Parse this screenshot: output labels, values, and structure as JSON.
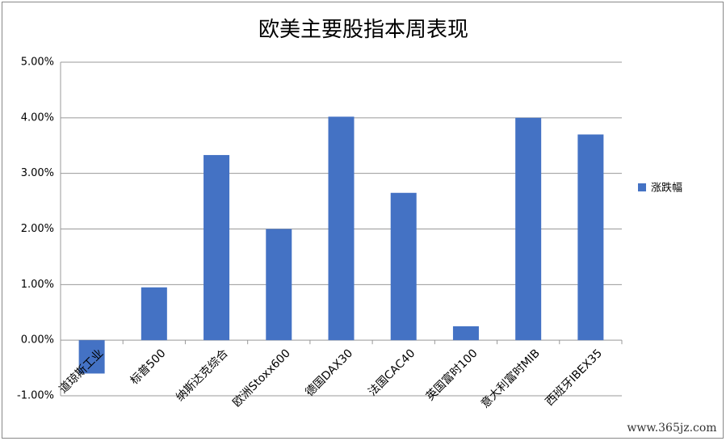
{
  "chart_data": {
    "type": "bar",
    "title": "欧美主要股指本周表现",
    "categories": [
      "道琼斯工业",
      "标普500",
      "纳斯达克综合",
      "欧洲Stoxx600",
      "德国DAX30",
      "法国CAC40",
      "英国富时100",
      "意大利富时MIB",
      "西班牙IBEX35"
    ],
    "series": [
      {
        "name": "涨跌幅",
        "color": "#4472c4",
        "values": [
          -0.6,
          0.95,
          3.33,
          2.0,
          4.02,
          2.65,
          0.25,
          4.0,
          3.7
        ]
      }
    ],
    "ylim": [
      -1,
      5
    ],
    "yticks": [
      {
        "value": -1,
        "label": "-1.00%"
      },
      {
        "value": 0,
        "label": "0.00%"
      },
      {
        "value": 1,
        "label": "1.00%"
      },
      {
        "value": 2,
        "label": "2.00%"
      },
      {
        "value": 3,
        "label": "3.00%"
      },
      {
        "value": 4,
        "label": "4.00%"
      },
      {
        "value": 5,
        "label": "5.00%"
      }
    ],
    "grid": true,
    "legend": "right",
    "annotation": "www.365jz.com"
  }
}
